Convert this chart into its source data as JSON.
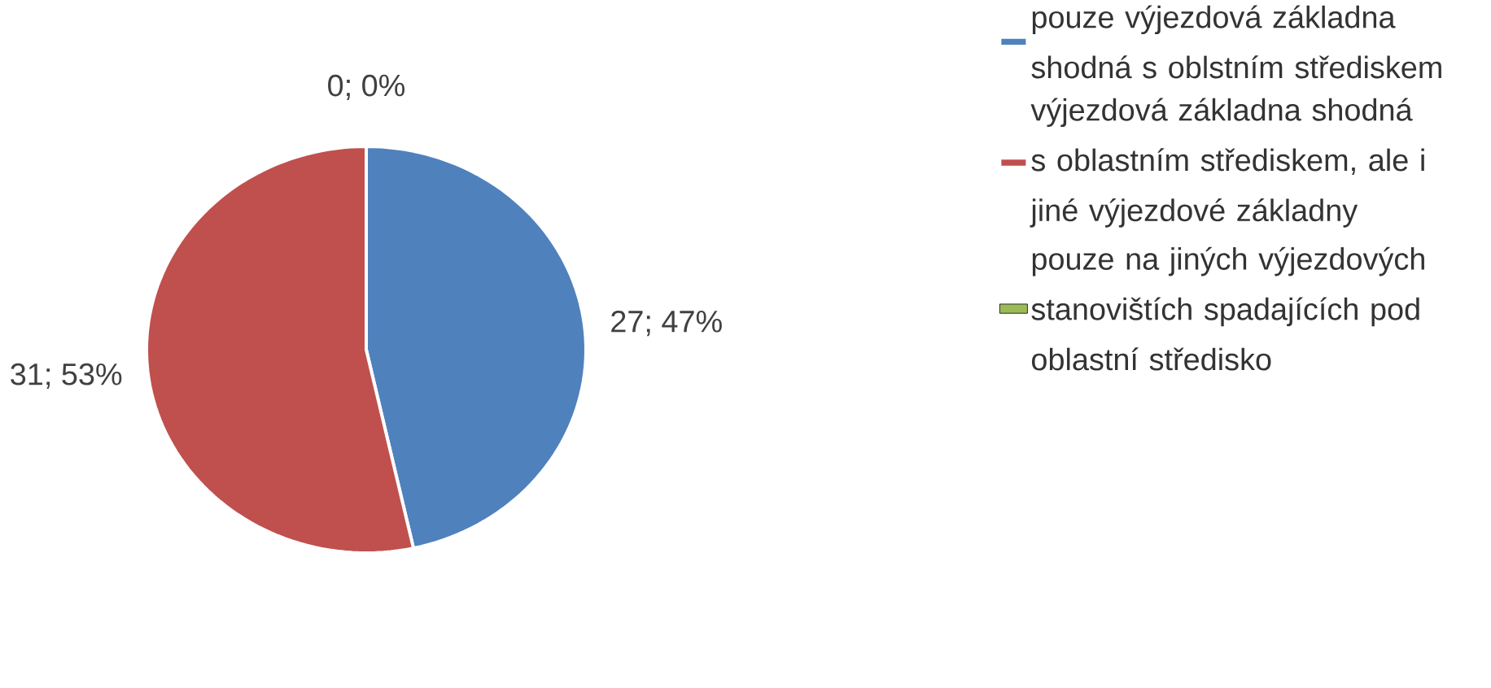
{
  "chart_data": {
    "type": "pie",
    "categories": [
      "pouze výjezdová základna shodná s oblstním střediskem",
      "výjezdová základna shodná s oblastním střediskem, ale i jiné výjezdové základny",
      "pouze na jiných výjezdových stanovištích spadajících pod oblastní středisko"
    ],
    "values": [
      27,
      31,
      0
    ],
    "colors": [
      "#4f81bd",
      "#c0504d",
      "#9bbb59"
    ],
    "value_labels": [
      "27; 47%",
      "31; 53%",
      "0; 0%"
    ],
    "legend": "right"
  }
}
